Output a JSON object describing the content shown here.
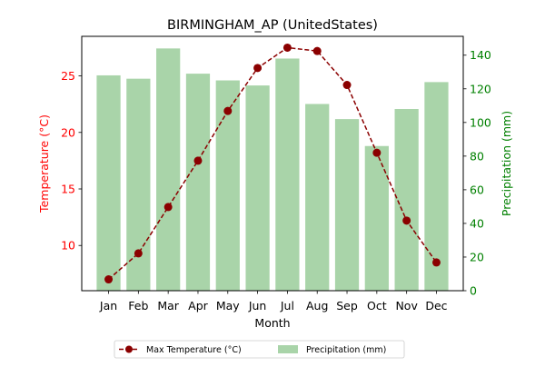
{
  "chart_data": {
    "type": "bar+line",
    "title": "BIRMINGHAM_AP (UnitedStates)",
    "xlabel": "Month",
    "ylabel_left": "Temperature (°C)",
    "ylabel_right": "Precipitation (mm)",
    "categories": [
      "Jan",
      "Feb",
      "Mar",
      "Apr",
      "May",
      "Jun",
      "Jul",
      "Aug",
      "Sep",
      "Oct",
      "Nov",
      "Dec"
    ],
    "series": [
      {
        "name": "Max Temperature (°C)",
        "type": "line",
        "axis": "left",
        "color": "#8b0000",
        "values": [
          7.0,
          9.3,
          13.4,
          17.5,
          21.9,
          25.7,
          27.5,
          27.2,
          24.2,
          18.2,
          12.2,
          8.5
        ]
      },
      {
        "name": "Precipitation (mm)",
        "type": "bar",
        "axis": "right",
        "color": "#a9d4a9",
        "values": [
          128,
          126,
          144,
          129,
          125,
          122,
          138,
          111,
          102,
          86,
          108,
          124
        ]
      }
    ],
    "ylim_left": [
      6.0,
      28.5
    ],
    "ylim_right": [
      0,
      151.2
    ],
    "yticks_left": [
      "10",
      "15",
      "20",
      "25"
    ],
    "yticks_right": [
      "0",
      "20",
      "40",
      "60",
      "80",
      "100",
      "120",
      "140"
    ],
    "left_axis_color": "#ff0000",
    "right_axis_color": "#008000",
    "grid": false,
    "legend_position": "bottom-center"
  }
}
